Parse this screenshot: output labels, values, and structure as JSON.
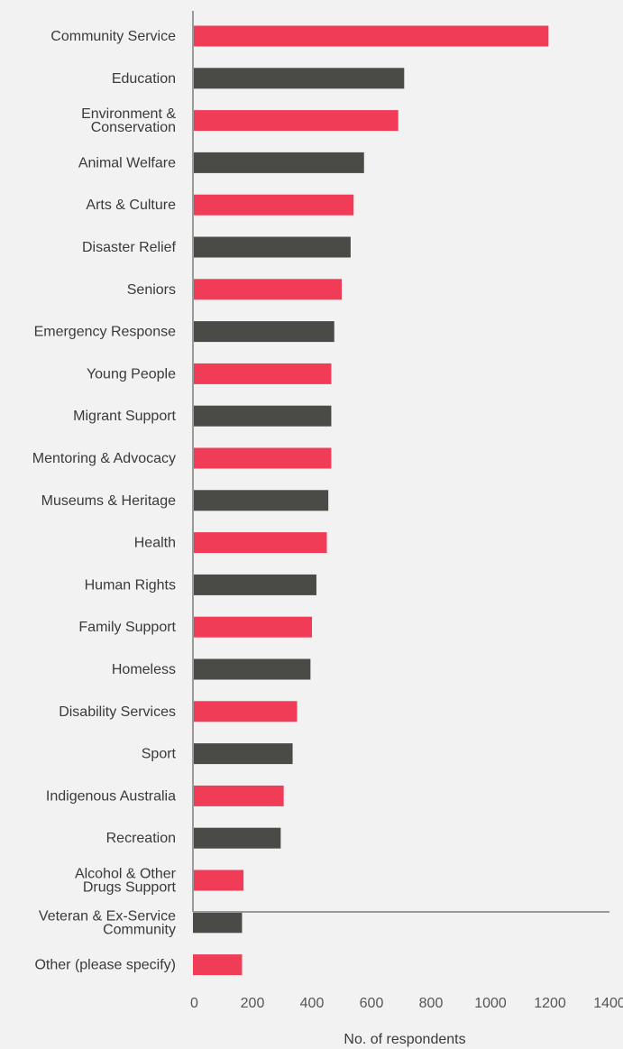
{
  "chart_data": {
    "type": "bar",
    "orientation": "horizontal",
    "title": "",
    "xlabel": "No. of respondents",
    "ylabel": "",
    "xlim": [
      0,
      1400
    ],
    "x_ticks": [
      0,
      200,
      400,
      600,
      800,
      1000,
      1200,
      1400
    ],
    "grid": false,
    "legend": "none",
    "colors": [
      "#f03c57",
      "#4a4a46"
    ],
    "categories": [
      "Community Service",
      "Education",
      "Environment & Conservation",
      "Animal Welfare",
      "Arts & Culture",
      "Disaster Relief",
      "Seniors",
      "Emergency Response",
      "Young People",
      "Migrant Support",
      "Mentoring & Advocacy",
      "Museums & Heritage",
      "Health",
      "Human Rights",
      "Family Support",
      "Homeless",
      "Disability Services",
      "Sport",
      "Indigenous Australia",
      "Recreation",
      "Alcohol & Other Drugs Support",
      "Veteran & Ex-Service Community",
      "Other (please specify)"
    ],
    "category_lines": [
      [
        "Community Service"
      ],
      [
        "Education"
      ],
      [
        "Environment &",
        "Conservation"
      ],
      [
        "Animal Welfare"
      ],
      [
        "Arts & Culture"
      ],
      [
        "Disaster Relief"
      ],
      [
        "Seniors"
      ],
      [
        "Emergency Response"
      ],
      [
        "Young People"
      ],
      [
        "Migrant Support"
      ],
      [
        "Mentoring & Advocacy"
      ],
      [
        "Museums & Heritage"
      ],
      [
        "Health"
      ],
      [
        "Human Rights"
      ],
      [
        "Family Support"
      ],
      [
        "Homeless"
      ],
      [
        "Disability Services"
      ],
      [
        "Sport"
      ],
      [
        "Indigenous Australia"
      ],
      [
        "Recreation"
      ],
      [
        "Alcohol & Other",
        "Drugs Support"
      ],
      [
        "Veteran & Ex-Service",
        "Community"
      ],
      [
        "Other (please specify)"
      ]
    ],
    "values": [
      1195,
      710,
      690,
      575,
      540,
      530,
      500,
      475,
      465,
      465,
      465,
      455,
      450,
      415,
      400,
      395,
      350,
      335,
      305,
      295,
      170,
      165,
      165
    ]
  }
}
